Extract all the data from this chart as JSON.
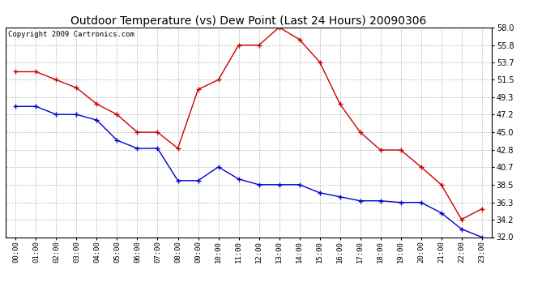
{
  "title": "Outdoor Temperature (vs) Dew Point (Last 24 Hours) 20090306",
  "copyright": "Copyright 2009 Cartronics.com",
  "hours": [
    "00:00",
    "01:00",
    "02:00",
    "03:00",
    "04:00",
    "05:00",
    "06:00",
    "07:00",
    "08:00",
    "09:00",
    "10:00",
    "11:00",
    "12:00",
    "13:00",
    "14:00",
    "15:00",
    "16:00",
    "17:00",
    "18:00",
    "19:00",
    "20:00",
    "21:00",
    "22:00",
    "23:00"
  ],
  "temp": [
    52.5,
    52.5,
    51.5,
    50.5,
    48.5,
    47.2,
    45.0,
    45.0,
    43.0,
    50.3,
    51.5,
    55.8,
    55.8,
    58.0,
    56.5,
    53.7,
    48.5,
    45.0,
    42.8,
    42.8,
    40.7,
    38.5,
    34.2,
    35.5
  ],
  "dewpoint": [
    48.2,
    48.2,
    47.2,
    47.2,
    46.5,
    44.0,
    43.0,
    43.0,
    39.0,
    39.0,
    40.7,
    39.2,
    38.5,
    38.5,
    38.5,
    37.5,
    37.0,
    36.5,
    36.5,
    36.3,
    36.3,
    35.0,
    33.0,
    32.0
  ],
  "ylim": [
    32.0,
    58.0
  ],
  "yticks": [
    32.0,
    34.2,
    36.3,
    38.5,
    40.7,
    42.8,
    45.0,
    47.2,
    49.3,
    51.5,
    53.7,
    55.8,
    58.0
  ],
  "temp_color": "#cc0000",
  "dewpoint_color": "#0000cc",
  "bg_color": "#ffffff",
  "plot_bg_color": "#ffffff",
  "grid_color": "#bbbbbb",
  "title_fontsize": 10,
  "copyright_fontsize": 6.5
}
